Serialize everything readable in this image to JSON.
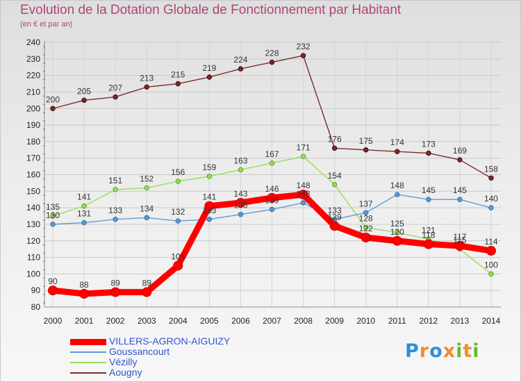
{
  "chart_data": {
    "type": "line",
    "title": "Evolution de la Dotation Globale de Fonctionnement par Habitant",
    "subtitle": "(en € et par an)",
    "xlabel": "",
    "ylabel": "",
    "categories": [
      "2000",
      "2001",
      "2002",
      "2003",
      "2004",
      "2005",
      "2006",
      "2007",
      "2008",
      "2009",
      "2010",
      "2011",
      "2012",
      "2013",
      "2014"
    ],
    "ylim": [
      80,
      240
    ],
    "yticks": [
      80,
      90,
      100,
      110,
      120,
      130,
      140,
      150,
      160,
      170,
      180,
      190,
      200,
      210,
      220,
      230,
      240
    ],
    "grid": true,
    "legend_position": "bottom-left",
    "series": [
      {
        "name": "VILLERS-AGRON-AIGUIZY",
        "color": "#ff0000",
        "values": [
          90,
          88,
          89,
          89,
          105,
          141,
          143,
          146,
          148,
          129,
          122,
          120,
          118,
          117,
          114
        ],
        "labels": [
          "90",
          "88",
          "89",
          "89",
          "105",
          "141",
          "143",
          "146",
          "148",
          "129",
          "122",
          "120",
          "118",
          "117",
          "114"
        ]
      },
      {
        "name": "Goussancourt",
        "color": "#5b9bd5",
        "values": [
          130,
          131,
          133,
          134,
          132,
          133,
          136,
          139,
          143,
          133,
          137,
          148,
          145,
          145,
          140
        ],
        "labels": [
          "130",
          "131",
          "133",
          "134",
          "132",
          "133",
          "136",
          "139",
          "143",
          "133",
          "137",
          "148",
          "145",
          "145",
          "140"
        ]
      },
      {
        "name": "Vézilly",
        "color": "#99dd55",
        "values": [
          135,
          141,
          151,
          152,
          156,
          159,
          163,
          167,
          171,
          154,
          128,
          125,
          121,
          115,
          100
        ],
        "labels": [
          "135",
          "141",
          "151",
          "152",
          "156",
          "159",
          "163",
          "167",
          "171",
          "154",
          "128",
          "125",
          "121",
          "115",
          "100"
        ]
      },
      {
        "name": "Aougny",
        "color": "#7a2a2a",
        "values": [
          200,
          205,
          207,
          213,
          215,
          219,
          224,
          228,
          232,
          176,
          175,
          174,
          173,
          169,
          158
        ],
        "labels": [
          "200",
          "205",
          "207",
          "213",
          "215",
          "219",
          "224",
          "228",
          "232",
          "176",
          "175",
          "174",
          "173",
          "169",
          "158"
        ]
      }
    ]
  },
  "logo": {
    "text": "Proxiti",
    "colors": [
      "#2f8fd8",
      "#f28c28",
      "#2f8fd8",
      "#f28c28",
      "#6ab82e",
      "#f28c28",
      "#6ab82e"
    ]
  }
}
